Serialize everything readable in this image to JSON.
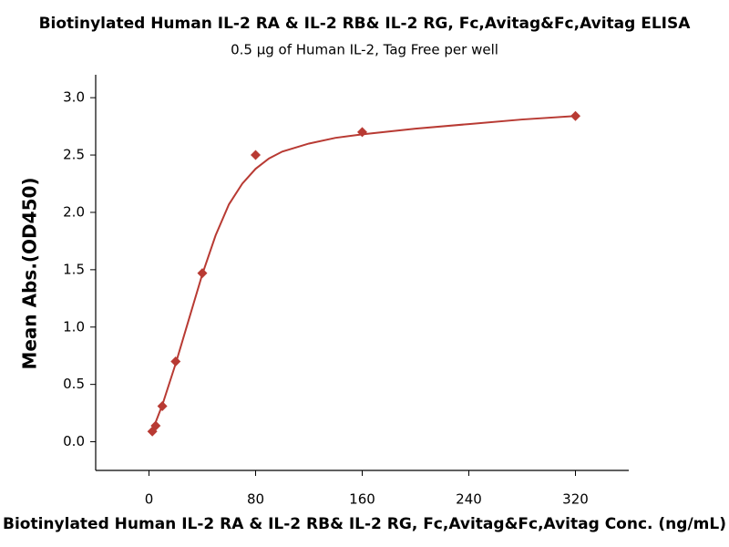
{
  "chart_data": {
    "type": "scatter",
    "title": "Biotinylated Human IL-2 RA & IL-2 RB& IL-2 RG, Fc,Avitag&Fc,Avitag ELISA",
    "subtitle": "0.5 μg of Human IL-2, Tag Free per well",
    "x_label": "Biotinylated Human IL-2 RA & IL-2 RB& IL-2 RG, Fc,Avitag&Fc,Avitag Conc. (ng/mL)",
    "y_label": "Mean Abs.(OD450)",
    "points": {
      "color": "#b83a33",
      "x": [
        2.5,
        5,
        10,
        20,
        40,
        80,
        160,
        320
      ],
      "values": [
        0.09,
        0.14,
        0.31,
        0.7,
        1.47,
        2.5,
        2.7,
        2.84
      ]
    },
    "fit": {
      "color": "#b83a33",
      "x": [
        2.5,
        5,
        10,
        20,
        30,
        40,
        50,
        60,
        70,
        80,
        90,
        100,
        120,
        140,
        160,
        200,
        240,
        280,
        320
      ],
      "values": [
        0.1,
        0.17,
        0.32,
        0.68,
        1.07,
        1.46,
        1.8,
        2.07,
        2.25,
        2.38,
        2.47,
        2.53,
        2.6,
        2.65,
        2.68,
        2.73,
        2.77,
        2.81,
        2.84
      ]
    },
    "xlim": [
      -40,
      360
    ],
    "xticks": [
      0,
      80,
      160,
      240,
      320
    ],
    "ylim": [
      -0.25,
      3.2
    ],
    "yticks": [
      {
        "value": 0,
        "label": "0.0"
      },
      0.5,
      {
        "value": 1,
        "label": "1.0"
      },
      1.5,
      {
        "value": 2,
        "label": "2.0"
      },
      2.5,
      {
        "value": 3,
        "label": "3.0"
      }
    ]
  }
}
